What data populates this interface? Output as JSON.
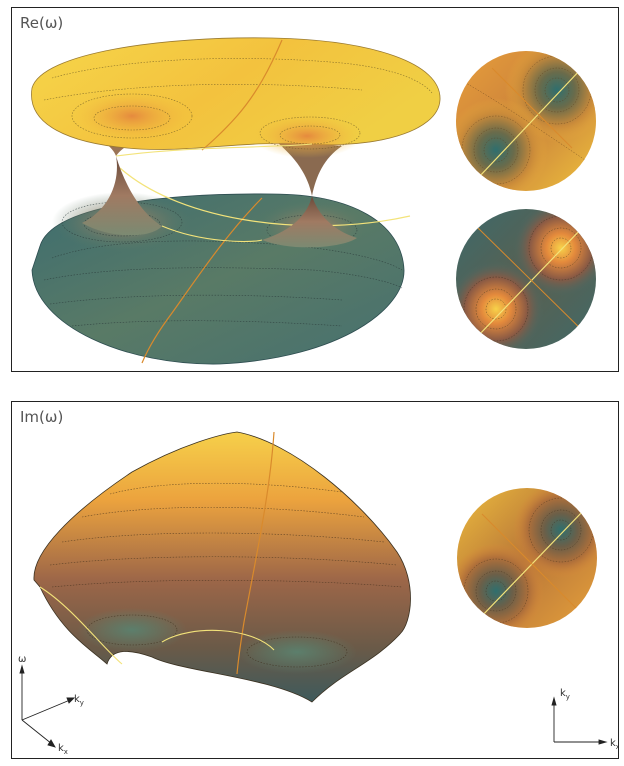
{
  "panels": {
    "re": {
      "label": "Re(ω)"
    },
    "im": {
      "label": "Im(ω)"
    }
  },
  "axes": {
    "omega": "ω",
    "ky": "k",
    "ky_sub": "y",
    "kx": "k",
    "kx_sub": "x"
  },
  "colors": {
    "gold": "#f5d040",
    "orange": "#e8973a",
    "brown": "#8a5a44",
    "teal": "#3f6f74",
    "line_yellow": "#f3e37a",
    "line_orange": "#d98a2c"
  }
}
